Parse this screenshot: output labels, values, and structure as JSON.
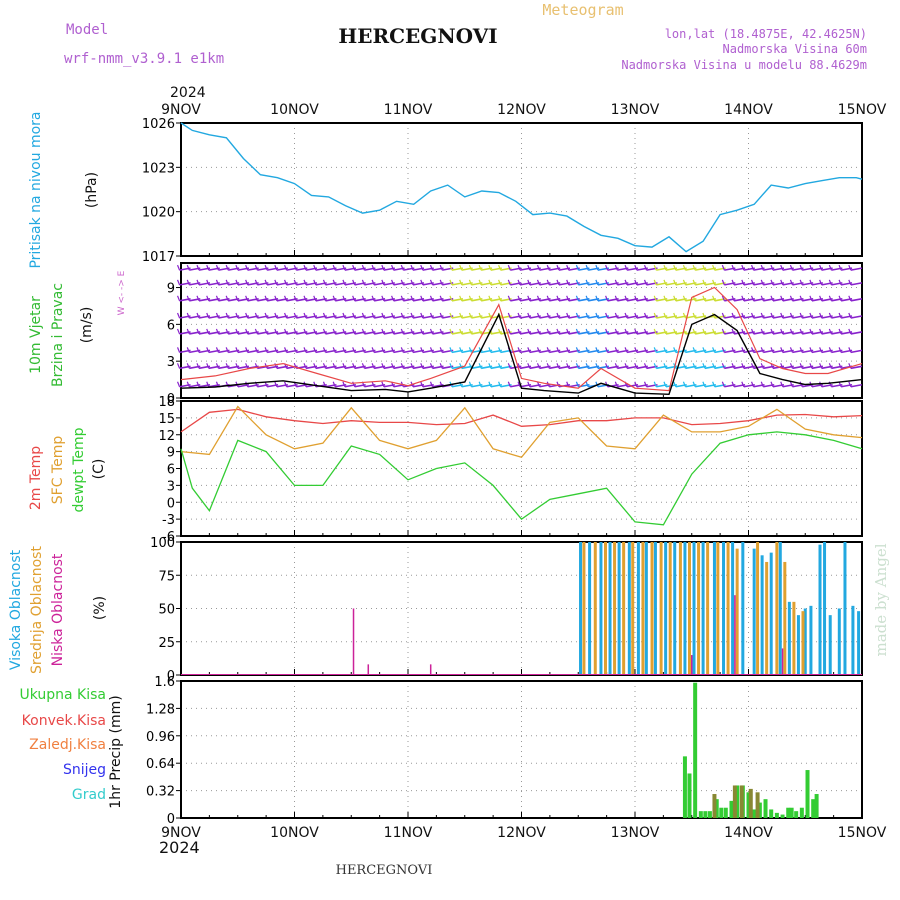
{
  "header": {
    "model_label": "Model",
    "model_name": "wrf-nmm_v3.9.1 e1km",
    "station_title": "HERCEGNOVI",
    "chart_kind": "Meteogram",
    "lonlat": "lon,lat (18.4875E, 42.4625N)",
    "elevation": "Nadmorska Visina 60m",
    "model_elevation": "Nadmorska Visina u modelu 88.4629m"
  },
  "footer": {
    "station": "HERCEGNOVI",
    "watermark": "made by Angel"
  },
  "time_axis": {
    "year": "2024",
    "tick_labels": [
      "9NOV",
      "10NOV",
      "11NOV",
      "12NOV",
      "13NOV",
      "14NOV",
      "15NOV"
    ]
  },
  "colors": {
    "pressure": "#22a8e0",
    "temp2m": "#e84848",
    "sfc_temp": "#e0a030",
    "dewpoint": "#33cc33",
    "high_cloud": "#22a8e0",
    "mid_cloud": "#e0a030",
    "low_cloud": "#cc2299",
    "total_precip": "#33cc33",
    "conv_precip": "#e84848",
    "frozen_precip": "#f08040",
    "snow": "#3333ee",
    "hail": "#33cccc",
    "wind_barb": "#8822cc",
    "wind_label": "#33bb33",
    "wind_dir_label": "#cc66cc"
  },
  "chart_data": [
    {
      "type": "line",
      "panel": "pressure",
      "ylabel": [
        "Pritisak na nivou mora",
        "(hPa)"
      ],
      "ylim": [
        1017,
        1026
      ],
      "yticks": [
        1017,
        1020,
        1023,
        1026
      ],
      "grid": true,
      "series": [
        {
          "x": [
            0,
            0.1,
            0.25,
            0.4,
            0.55,
            0.7,
            0.85,
            1.0,
            1.15,
            1.3,
            1.45,
            1.6,
            1.75,
            1.9,
            2.05,
            2.2,
            2.35,
            2.5,
            2.65,
            2.8,
            2.95,
            3.1,
            3.25,
            3.4,
            3.55,
            3.7,
            3.85,
            4.0,
            4.15,
            4.3,
            4.45,
            4.6,
            4.75,
            4.9,
            5.05,
            5.2,
            5.35,
            5.5,
            5.65,
            5.8,
            5.95,
            6.0
          ],
          "values": [
            1026.0,
            1025.5,
            1025.2,
            1025.0,
            1023.6,
            1022.5,
            1022.3,
            1021.9,
            1021.1,
            1021.0,
            1020.4,
            1019.9,
            1020.1,
            1020.7,
            1020.5,
            1021.4,
            1021.8,
            1021.0,
            1021.4,
            1021.3,
            1020.7,
            1019.8,
            1019.9,
            1019.7,
            1019.0,
            1018.4,
            1018.2,
            1017.7,
            1017.6,
            1018.3,
            1017.3,
            1018.0,
            1019.8,
            1020.1,
            1020.5,
            1021.8,
            1021.6,
            1021.9,
            1022.1,
            1022.3,
            1022.3,
            1022.2
          ]
        }
      ]
    },
    {
      "type": "line",
      "panel": "wind",
      "ylabel": [
        "10m Vjetar",
        "Brzina i Pravac",
        "(m/s)"
      ],
      "direction_legend": "W <- -> E",
      "ylim": [
        0,
        11
      ],
      "yticks": [
        0,
        3,
        6,
        9
      ],
      "grid": true,
      "series": [
        {
          "name": "speed",
          "x": [
            0,
            0.3,
            0.6,
            0.9,
            1.2,
            1.5,
            1.8,
            2.0,
            2.2,
            2.5,
            2.8,
            3.0,
            3.2,
            3.5,
            3.7,
            4.0,
            4.3,
            4.5,
            4.7,
            4.9,
            5.1,
            5.3,
            5.5,
            5.7,
            6.0
          ],
          "values": [
            0.8,
            0.9,
            1.2,
            1.4,
            1.0,
            0.6,
            0.7,
            0.5,
            0.8,
            1.3,
            6.8,
            0.8,
            0.6,
            0.4,
            1.2,
            0.4,
            0.3,
            6.0,
            6.8,
            5.5,
            2.0,
            1.5,
            1.1,
            1.2,
            1.5
          ]
        },
        {
          "name": "gust",
          "x": [
            0,
            0.3,
            0.6,
            0.9,
            1.2,
            1.5,
            1.8,
            2.0,
            2.2,
            2.5,
            2.8,
            3.0,
            3.2,
            3.5,
            3.7,
            4.0,
            4.3,
            4.5,
            4.7,
            4.9,
            5.1,
            5.3,
            5.5,
            5.7,
            6.0
          ],
          "values": [
            1.5,
            1.8,
            2.4,
            2.8,
            2.0,
            1.2,
            1.4,
            1.0,
            1.6,
            2.6,
            7.6,
            1.6,
            1.2,
            0.8,
            2.4,
            0.8,
            0.6,
            8.2,
            9.0,
            7.2,
            3.2,
            2.4,
            2.0,
            2.0,
            2.8
          ]
        }
      ]
    },
    {
      "type": "line",
      "panel": "temperature",
      "ylabel": [
        "2m Temp",
        "SFC Temp",
        "dewpt Temp",
        "(C)"
      ],
      "ylim": [
        -6,
        18
      ],
      "yticks": [
        -6,
        -3,
        0,
        3,
        6,
        9,
        12,
        15,
        18
      ],
      "grid": true,
      "series": [
        {
          "name": "2m Temp",
          "x": [
            0,
            0.25,
            0.5,
            0.75,
            1.0,
            1.25,
            1.5,
            1.75,
            2.0,
            2.25,
            2.5,
            2.75,
            3.0,
            3.25,
            3.5,
            3.75,
            4.0,
            4.25,
            4.5,
            4.75,
            5.0,
            5.25,
            5.5,
            5.75,
            6.0
          ],
          "values": [
            12.5,
            16.0,
            16.5,
            15.2,
            14.5,
            14.0,
            14.5,
            14.2,
            14.2,
            13.8,
            14.0,
            15.5,
            13.5,
            13.8,
            14.5,
            14.5,
            15.0,
            15.0,
            13.8,
            14.0,
            14.5,
            15.5,
            15.6,
            15.2,
            15.4
          ]
        },
        {
          "name": "SFC Temp",
          "x": [
            0,
            0.25,
            0.5,
            0.75,
            1.0,
            1.25,
            1.5,
            1.75,
            2.0,
            2.25,
            2.5,
            2.75,
            3.0,
            3.25,
            3.5,
            3.75,
            4.0,
            4.25,
            4.5,
            4.75,
            5.0,
            5.25,
            5.5,
            5.75,
            6.0
          ],
          "values": [
            9.0,
            8.5,
            17.0,
            12.0,
            9.5,
            10.5,
            16.8,
            11.0,
            9.5,
            11.0,
            16.8,
            9.5,
            8.0,
            14.2,
            15.0,
            10.0,
            9.5,
            15.5,
            12.5,
            12.5,
            13.5,
            16.5,
            13.0,
            12.0,
            11.5
          ]
        },
        {
          "name": "dewpt Temp",
          "x": [
            0,
            0.1,
            0.25,
            0.5,
            0.75,
            1.0,
            1.25,
            1.5,
            1.75,
            2.0,
            2.25,
            2.5,
            2.75,
            3.0,
            3.25,
            3.5,
            3.75,
            4.0,
            4.25,
            4.5,
            4.75,
            5.0,
            5.25,
            5.5,
            5.75,
            6.0
          ],
          "values": [
            9.5,
            2.5,
            -1.5,
            11.0,
            9.0,
            3.0,
            3.0,
            10.0,
            8.5,
            4.0,
            6.0,
            7.0,
            3.0,
            -3.0,
            0.5,
            1.5,
            2.5,
            -3.5,
            -4.0,
            5.0,
            10.5,
            12.0,
            12.5,
            12.0,
            11.0,
            9.5
          ]
        }
      ]
    },
    {
      "type": "bar",
      "panel": "cloud",
      "ylabel": [
        "Visoka Oblacnost",
        "Srednja Oblacnost",
        "Niska Oblacnost",
        "(%)"
      ],
      "ylim": [
        0,
        100
      ],
      "yticks": [
        0,
        25,
        50,
        75,
        100
      ],
      "grid": true,
      "series": [
        {
          "name": "Visoka Oblacnost",
          "x": [
            3.52,
            3.6,
            3.7,
            3.78,
            3.86,
            3.95,
            4.03,
            4.1,
            4.18,
            4.27,
            4.35,
            4.44,
            4.52,
            4.6,
            4.7,
            4.78,
            4.86,
            4.95,
            5.05,
            5.12,
            5.2,
            5.28,
            5.36,
            5.44,
            5.5,
            5.55,
            5.63,
            5.67,
            5.72,
            5.8,
            5.85,
            5.92,
            5.97
          ],
          "values": [
            100,
            100,
            100,
            100,
            100,
            100,
            100,
            100,
            100,
            100,
            100,
            100,
            100,
            100,
            100,
            100,
            100,
            100,
            95,
            90,
            92,
            100,
            55,
            45,
            50,
            52,
            98,
            100,
            45,
            50,
            100,
            52,
            48
          ]
        },
        {
          "name": "Srednja Oblacnost",
          "x": [
            3.55,
            3.65,
            3.74,
            3.82,
            3.9,
            3.98,
            4.07,
            4.15,
            4.23,
            4.31,
            4.4,
            4.48,
            4.56,
            4.64,
            4.73,
            4.82,
            4.9,
            5.08,
            5.16,
            5.25,
            5.32,
            5.4,
            5.48
          ],
          "values": [
            100,
            100,
            100,
            100,
            100,
            100,
            100,
            100,
            100,
            100,
            100,
            100,
            100,
            100,
            100,
            100,
            95,
            100,
            85,
            100,
            85,
            55,
            48
          ]
        },
        {
          "name": "Niska Oblacnost",
          "x": [
            1.52,
            1.65,
            2.2,
            4.5,
            4.88,
            5.3
          ],
          "values": [
            50,
            8,
            8,
            15,
            60,
            20
          ]
        }
      ]
    },
    {
      "type": "bar",
      "panel": "precip",
      "ylabel": [
        "1hr Precip (mm)"
      ],
      "legend": [
        "Ukupna Kisa",
        "Konvek.Kisa",
        "Zaledj.Kisa",
        "Snijeg",
        "Grad"
      ],
      "ylim": [
        0,
        1.6
      ],
      "yticks": [
        0,
        0.32,
        0.64,
        0.96,
        1.28,
        1.6
      ],
      "grid": true,
      "series": [
        {
          "name": "Ukupna Kisa",
          "x": [
            4.44,
            4.48,
            4.53,
            4.58,
            4.62,
            4.66,
            4.72,
            4.76,
            4.8,
            4.85,
            4.9,
            4.95,
            5.0,
            5.05,
            5.1,
            5.15,
            5.2,
            5.25,
            5.3,
            5.35,
            5.38,
            5.42,
            5.47,
            5.52,
            5.57,
            5.6
          ],
          "values": [
            0.72,
            0.52,
            1.58,
            0.08,
            0.08,
            0.08,
            0.22,
            0.12,
            0.12,
            0.2,
            0.38,
            0.38,
            0.3,
            0.1,
            0.18,
            0.22,
            0.1,
            0.06,
            0.04,
            0.12,
            0.12,
            0.08,
            0.12,
            0.56,
            0.22,
            0.28
          ]
        },
        {
          "name": "Zaledj.Kisa",
          "x": [
            4.7,
            4.88,
            4.94,
            5.02,
            5.08
          ],
          "values": [
            0.28,
            0.38,
            0.38,
            0.34,
            0.3
          ]
        }
      ]
    }
  ]
}
